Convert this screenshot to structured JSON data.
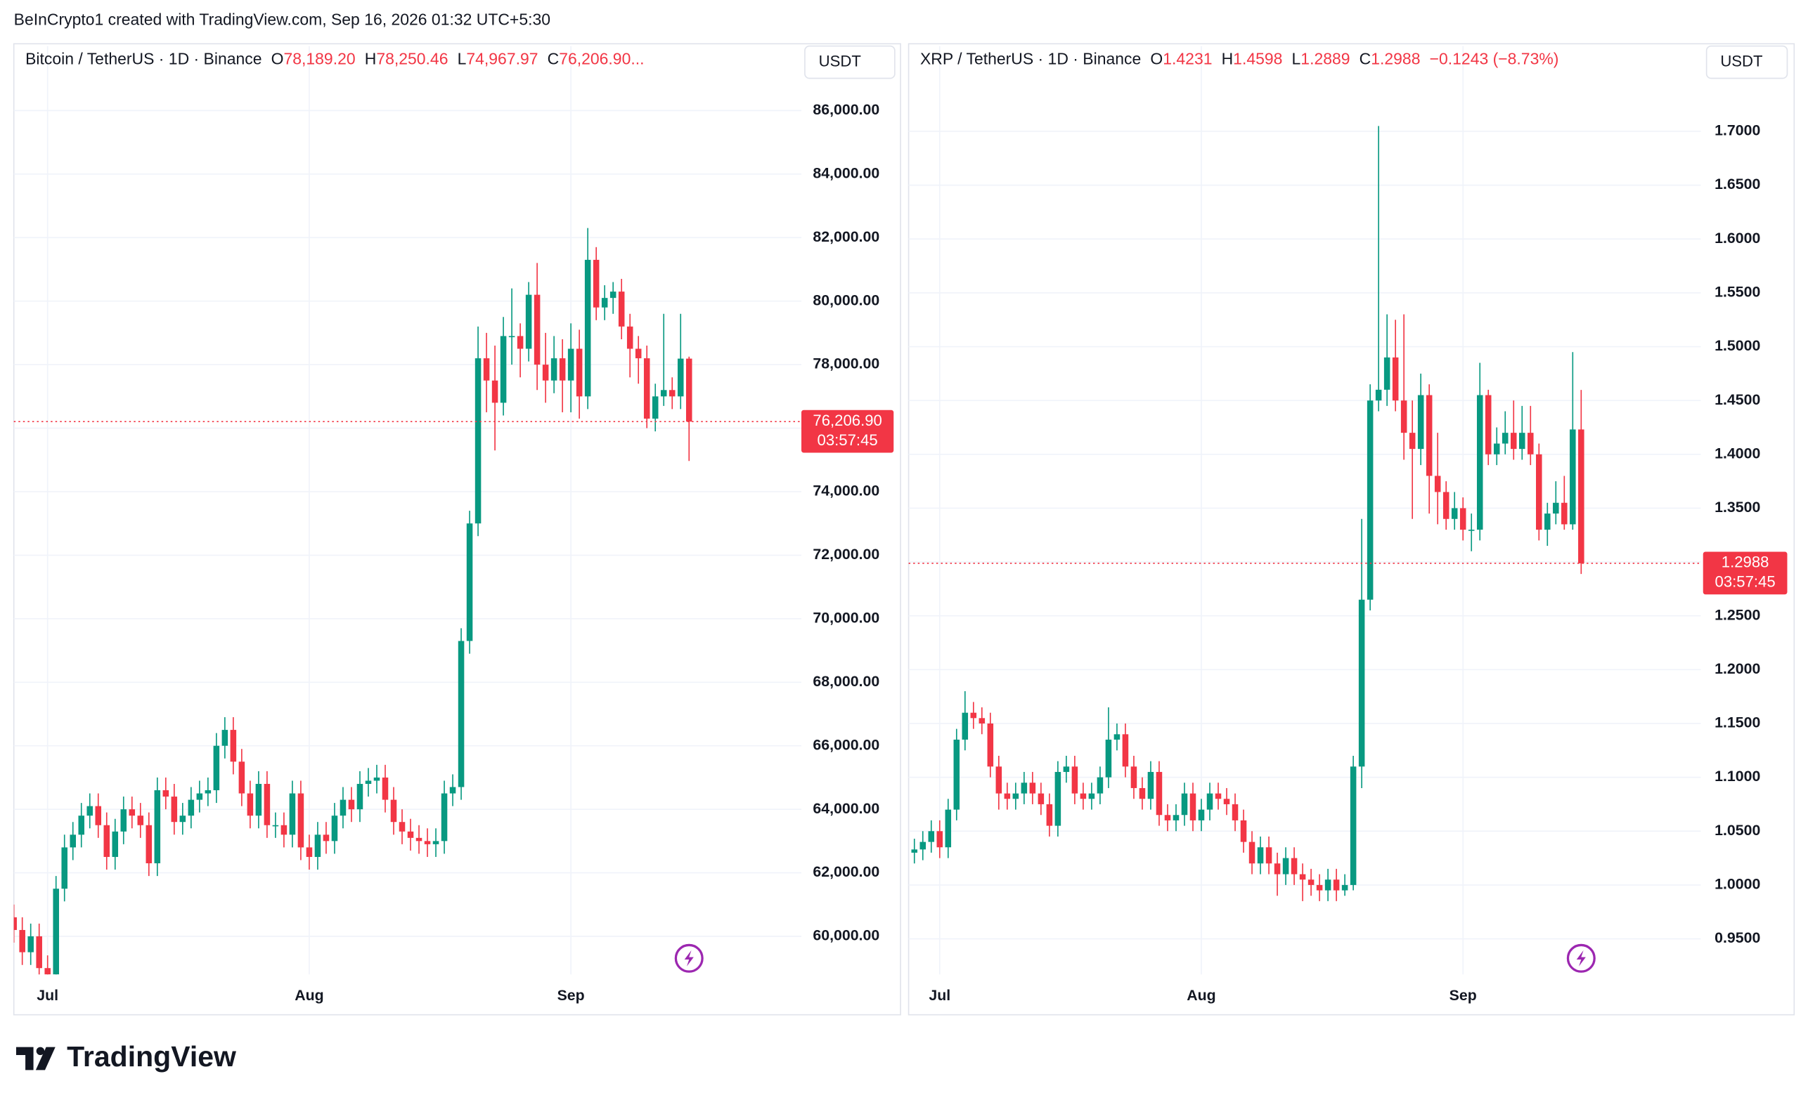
{
  "header": {
    "text": "BeInCrypto1 created with TradingView.com, Sep 16, 2026 01:32 UTC+5:30"
  },
  "footer": {
    "logo": "TradingView"
  },
  "chart_data": [
    {
      "type": "candlestick",
      "currency": "USDT",
      "legend": {
        "title": "Bitcoin / TetherUS · 1D · Binance",
        "values": [
          {
            "prefix": "O",
            "label": "78,189.20"
          },
          {
            "prefix": "H",
            "label": "78,250.46"
          },
          {
            "prefix": "L",
            "label": "74,967.97"
          },
          {
            "prefix": "C",
            "label": "76,206.90..."
          }
        ]
      },
      "last_price_label": "76,206.90",
      "countdown": "03:57:45",
      "up_color": "#089981",
      "down_color": "#f23645",
      "grid": true,
      "ylim": [
        58800,
        88030
      ],
      "yticks": [
        {
          "value": 60000,
          "label": "60,000.00"
        },
        {
          "value": 62000,
          "label": "62,000.00"
        },
        {
          "value": 64000,
          "label": "64,000.00"
        },
        {
          "value": 66000,
          "label": "66,000.00"
        },
        {
          "value": 68000,
          "label": "68,000.00"
        },
        {
          "value": 70000,
          "label": "70,000.00"
        },
        {
          "value": 72000,
          "label": "72,000.00"
        },
        {
          "value": 74000,
          "label": "74,000.00"
        },
        {
          "value": 76000,
          "label": "76,000.00"
        },
        {
          "value": 78000,
          "label": "78,000.00"
        },
        {
          "value": 80000,
          "label": "80,000.00"
        },
        {
          "value": 82000,
          "label": "82,000.00"
        },
        {
          "value": 84000,
          "label": "84,000.00"
        },
        {
          "value": 86000,
          "label": "86,000.00"
        }
      ],
      "xticks": [
        {
          "value": 4,
          "label": "Jul"
        },
        {
          "value": 35,
          "label": "Aug"
        },
        {
          "value": 66,
          "label": "Sep"
        }
      ],
      "ohlc": {
        "open": [
          60600,
          60200,
          59500,
          60000,
          59000,
          58800,
          61500,
          62800,
          63200,
          63800,
          64100,
          63500,
          62500,
          63300,
          64000,
          63800,
          63500,
          62300,
          64600,
          64400,
          63600,
          63800,
          64300,
          64500,
          64600,
          66000,
          66500,
          65500,
          64500,
          63800,
          64800,
          63500,
          63500,
          63200,
          64500,
          62800,
          62500,
          63200,
          63000,
          63800,
          64300,
          64000,
          64800,
          64900,
          65000,
          64300,
          63600,
          63300,
          63100,
          63000,
          62900,
          63000,
          64500,
          64700,
          69300,
          73000,
          78200,
          77500,
          76800,
          78900,
          78900,
          78500,
          80200,
          78000,
          77500,
          78200,
          77500,
          78500,
          77000,
          81300,
          79800,
          80100,
          80300,
          79200,
          78500,
          78200,
          76300,
          77000,
          77200,
          77000,
          78189.2
        ],
        "high": [
          61000,
          60600,
          60400,
          60400,
          59400,
          61900,
          63200,
          63600,
          64200,
          64500,
          64500,
          63900,
          63700,
          64400,
          64400,
          64200,
          63900,
          65000,
          65000,
          64800,
          64200,
          64700,
          64900,
          65000,
          66400,
          66900,
          66900,
          65900,
          64900,
          65200,
          65200,
          63900,
          63900,
          64900,
          64900,
          63200,
          63600,
          63600,
          64200,
          64700,
          64700,
          65200,
          65300,
          65400,
          65400,
          64700,
          64000,
          63700,
          63500,
          63400,
          63400,
          64900,
          65100,
          69700,
          73400,
          79200,
          79000,
          78600,
          79500,
          80400,
          79300,
          80600,
          81200,
          79000,
          78900,
          78800,
          79300,
          79100,
          82300,
          81700,
          80500,
          80600,
          80700,
          79600,
          78900,
          78600,
          77400,
          79600,
          77600,
          79600,
          78250.46
        ],
        "low": [
          59800,
          59100,
          59100,
          58600,
          58400,
          58400,
          61100,
          62400,
          62800,
          63400,
          63100,
          62100,
          62100,
          62900,
          63400,
          63100,
          61900,
          61900,
          64000,
          63200,
          63200,
          63400,
          63900,
          64100,
          64200,
          65600,
          65100,
          64100,
          63400,
          63400,
          63100,
          63100,
          62800,
          62800,
          62400,
          62100,
          62100,
          62600,
          62600,
          63400,
          63600,
          63600,
          64400,
          64500,
          63900,
          63200,
          62900,
          62700,
          62600,
          62500,
          62500,
          62600,
          64100,
          64300,
          68900,
          72600,
          76500,
          75300,
          76400,
          78000,
          77600,
          78100,
          77200,
          76800,
          77100,
          76500,
          76500,
          76300,
          76600,
          79400,
          79400,
          79600,
          78800,
          77600,
          77400,
          76000,
          75900,
          76700,
          76600,
          76600,
          74967.97
        ],
        "close": [
          60200,
          59500,
          60000,
          59000,
          58800,
          61500,
          62800,
          63200,
          63800,
          64100,
          63500,
          62500,
          63300,
          64000,
          63800,
          63500,
          62300,
          64600,
          64400,
          63600,
          63800,
          64300,
          64500,
          64600,
          66000,
          66500,
          65500,
          64500,
          63800,
          64800,
          63500,
          63500,
          63200,
          64500,
          62800,
          62500,
          63200,
          63000,
          63800,
          64300,
          64000,
          64800,
          64900,
          65000,
          64300,
          63600,
          63300,
          63100,
          63000,
          62900,
          63000,
          64500,
          64700,
          69300,
          73000,
          78200,
          77500,
          76800,
          78900,
          78900,
          78500,
          80200,
          78000,
          77500,
          78200,
          77500,
          78500,
          77000,
          81300,
          79800,
          80100,
          80300,
          79200,
          78500,
          78200,
          76300,
          77000,
          77200,
          77000,
          78189.2,
          76206.9
        ]
      }
    },
    {
      "type": "candlestick",
      "currency": "USDT",
      "legend": {
        "title": "XRP / TetherUS · 1D · Binance",
        "values": [
          {
            "prefix": "O",
            "label": "1.4231"
          },
          {
            "prefix": "H",
            "label": "1.4598"
          },
          {
            "prefix": "L",
            "label": "1.2889"
          },
          {
            "prefix": "C",
            "label": "1.2988"
          }
        ],
        "change_label": "−0.1243 (−8.73%)"
      },
      "last_price_label": "1.2988",
      "countdown": "03:57:45",
      "up_color": "#089981",
      "down_color": "#f23645",
      "grid": true,
      "ylim": [
        0.9169,
        1.7792
      ],
      "yticks": [
        {
          "value": 0.95,
          "label": "0.9500"
        },
        {
          "value": 1.0,
          "label": "1.0000"
        },
        {
          "value": 1.05,
          "label": "1.0500"
        },
        {
          "value": 1.1,
          "label": "1.1000"
        },
        {
          "value": 1.15,
          "label": "1.1500"
        },
        {
          "value": 1.2,
          "label": "1.2000"
        },
        {
          "value": 1.25,
          "label": "1.2500"
        },
        {
          "value": 1.3,
          "label": "1.3000"
        },
        {
          "value": 1.35,
          "label": "1.3500"
        },
        {
          "value": 1.4,
          "label": "1.4000"
        },
        {
          "value": 1.45,
          "label": "1.4500"
        },
        {
          "value": 1.5,
          "label": "1.5000"
        },
        {
          "value": 1.55,
          "label": "1.5500"
        },
        {
          "value": 1.6,
          "label": "1.6000"
        },
        {
          "value": 1.65,
          "label": "1.6500"
        },
        {
          "value": 1.7,
          "label": "1.7000"
        }
      ],
      "xticks": [
        {
          "value": 3,
          "label": "Jul"
        },
        {
          "value": 34,
          "label": "Aug"
        },
        {
          "value": 65,
          "label": "Sep"
        }
      ],
      "ohlc": {
        "open": [
          1.03,
          1.033,
          1.04,
          1.05,
          1.035,
          1.07,
          1.135,
          1.16,
          1.155,
          1.15,
          1.11,
          1.085,
          1.08,
          1.085,
          1.095,
          1.085,
          1.075,
          1.055,
          1.105,
          1.11,
          1.085,
          1.08,
          1.085,
          1.1,
          1.135,
          1.14,
          1.11,
          1.09,
          1.08,
          1.105,
          1.065,
          1.06,
          1.065,
          1.085,
          1.06,
          1.07,
          1.085,
          1.08,
          1.075,
          1.06,
          1.04,
          1.02,
          1.035,
          1.02,
          1.01,
          1.025,
          1.01,
          1.005,
          1.0,
          0.995,
          1.005,
          0.995,
          1.0,
          1.11,
          1.265,
          1.45,
          1.46,
          1.49,
          1.45,
          1.42,
          1.405,
          1.455,
          1.38,
          1.365,
          1.34,
          1.35,
          1.33,
          1.33,
          1.455,
          1.4,
          1.41,
          1.42,
          1.405,
          1.42,
          1.4,
          1.33,
          1.345,
          1.355,
          1.335,
          1.4231
        ],
        "high": [
          1.043,
          1.05,
          1.06,
          1.06,
          1.08,
          1.145,
          1.18,
          1.17,
          1.165,
          1.16,
          1.12,
          1.095,
          1.095,
          1.105,
          1.105,
          1.095,
          1.085,
          1.115,
          1.12,
          1.12,
          1.095,
          1.095,
          1.11,
          1.165,
          1.15,
          1.15,
          1.12,
          1.1,
          1.115,
          1.115,
          1.075,
          1.075,
          1.095,
          1.095,
          1.08,
          1.095,
          1.095,
          1.09,
          1.085,
          1.07,
          1.05,
          1.045,
          1.045,
          1.03,
          1.035,
          1.035,
          1.02,
          1.015,
          1.01,
          1.015,
          1.015,
          1.01,
          1.12,
          1.34,
          1.465,
          1.705,
          1.53,
          1.525,
          1.53,
          1.45,
          1.475,
          1.465,
          1.42,
          1.375,
          1.365,
          1.36,
          1.345,
          1.485,
          1.46,
          1.425,
          1.44,
          1.45,
          1.445,
          1.445,
          1.41,
          1.355,
          1.375,
          1.38,
          1.495,
          1.4598
        ],
        "low": [
          1.02,
          1.023,
          1.03,
          1.025,
          1.025,
          1.06,
          1.125,
          1.145,
          1.14,
          1.1,
          1.07,
          1.07,
          1.07,
          1.075,
          1.075,
          1.065,
          1.045,
          1.045,
          1.095,
          1.075,
          1.07,
          1.07,
          1.075,
          1.09,
          1.125,
          1.1,
          1.08,
          1.07,
          1.07,
          1.055,
          1.05,
          1.05,
          1.055,
          1.05,
          1.05,
          1.06,
          1.07,
          1.065,
          1.05,
          1.03,
          1.01,
          1.01,
          1.01,
          0.99,
          1.0,
          1.0,
          0.985,
          0.99,
          0.985,
          0.985,
          0.985,
          0.99,
          0.995,
          1.09,
          1.255,
          1.44,
          1.445,
          1.44,
          1.395,
          1.34,
          1.39,
          1.345,
          1.335,
          1.33,
          1.33,
          1.32,
          1.31,
          1.32,
          1.39,
          1.39,
          1.4,
          1.395,
          1.395,
          1.39,
          1.32,
          1.315,
          1.335,
          1.33,
          1.33,
          1.2889
        ],
        "close": [
          1.033,
          1.04,
          1.05,
          1.035,
          1.07,
          1.135,
          1.16,
          1.155,
          1.15,
          1.11,
          1.085,
          1.08,
          1.085,
          1.095,
          1.085,
          1.075,
          1.055,
          1.105,
          1.11,
          1.085,
          1.08,
          1.085,
          1.1,
          1.135,
          1.14,
          1.11,
          1.09,
          1.08,
          1.105,
          1.065,
          1.06,
          1.065,
          1.085,
          1.06,
          1.07,
          1.085,
          1.08,
          1.075,
          1.06,
          1.04,
          1.02,
          1.035,
          1.02,
          1.01,
          1.025,
          1.01,
          1.005,
          1.0,
          0.995,
          1.005,
          0.995,
          1.0,
          1.11,
          1.265,
          1.45,
          1.46,
          1.49,
          1.45,
          1.42,
          1.405,
          1.455,
          1.38,
          1.365,
          1.34,
          1.35,
          1.33,
          1.33,
          1.455,
          1.4,
          1.41,
          1.42,
          1.405,
          1.42,
          1.4,
          1.33,
          1.345,
          1.355,
          1.335,
          1.4231,
          1.2988
        ]
      }
    }
  ]
}
